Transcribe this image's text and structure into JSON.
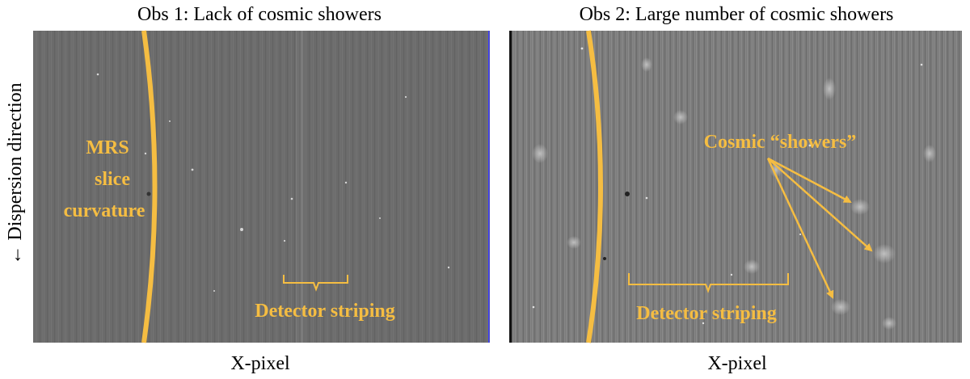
{
  "panels": [
    {
      "title": "Obs 1: Lack of cosmic showers",
      "xlabel": "X-pixel",
      "annotations": {
        "slice_lines": [
          "MRS",
          "slice",
          "curvature"
        ],
        "striping": "Detector striping"
      }
    },
    {
      "title": "Obs 2: Large number of cosmic showers",
      "xlabel": "X-pixel",
      "annotations": {
        "cosmic": "Cosmic “showers”",
        "striping": "Detector striping"
      }
    }
  ],
  "ylabel": "← Dispersion direction",
  "colors": {
    "annotation": "#f5bd42",
    "detector_obs1": "#6b6b6b",
    "detector_obs2": "#7a7a7a",
    "edge_line": "#3a3aff"
  }
}
